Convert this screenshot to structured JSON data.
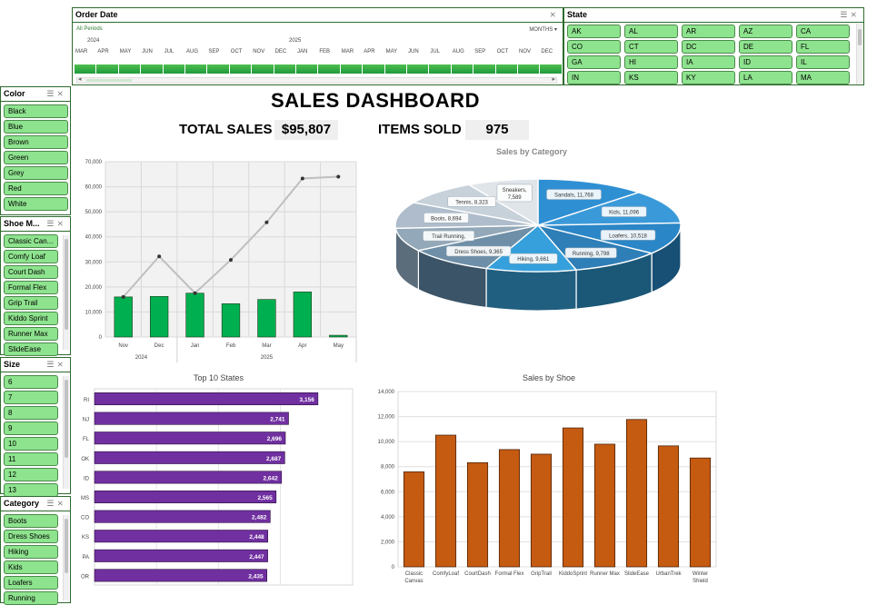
{
  "timeline": {
    "title": "Order Date",
    "period_label": "All Periods",
    "unit_label": "MONTHS",
    "years": [
      "2024",
      "2025"
    ],
    "months": [
      "MAR",
      "APR",
      "MAY",
      "JUN",
      "JUL",
      "AUG",
      "SEP",
      "OCT",
      "NOV",
      "DEC",
      "JAN",
      "FEB",
      "MAR",
      "APR",
      "MAY",
      "JUN",
      "JUL",
      "AUG",
      "SEP",
      "OCT",
      "NOV",
      "DEC"
    ]
  },
  "state_slicer": {
    "title": "State",
    "items": [
      "AK",
      "AL",
      "AR",
      "AZ",
      "CA",
      "CO",
      "CT",
      "DC",
      "DE",
      "FL",
      "GA",
      "HI",
      "IA",
      "ID",
      "IL",
      "IN",
      "KS",
      "KY",
      "LA",
      "MA"
    ]
  },
  "color_slicer": {
    "title": "Color",
    "items": [
      "Black",
      "Blue",
      "Brown",
      "Green",
      "Grey",
      "Red",
      "White"
    ]
  },
  "model_slicer": {
    "title": "Shoe M...",
    "items": [
      "Classic Can...",
      "Comfy Loaf",
      "Court Dash",
      "Formal Flex",
      "Grip Trail",
      "Kiddo Sprint",
      "Runner Max",
      "SlideEase"
    ]
  },
  "size_slicer": {
    "title": "Size",
    "items": [
      "6",
      "7",
      "8",
      "9",
      "10",
      "11",
      "12",
      "13"
    ]
  },
  "category_slicer": {
    "title": "Category",
    "items": [
      "Boots",
      "Dress Shoes",
      "Hiking",
      "Kids",
      "Loafers",
      "Running"
    ]
  },
  "header": {
    "title": "SALES DASHBOARD",
    "total_sales_label": "TOTAL SALES",
    "total_sales_value": "$95,807",
    "items_sold_label": "ITEMS SOLD",
    "items_sold_value": "975"
  },
  "colors": {
    "slicer_button": "#8ee38e",
    "bar_green": "#00b050",
    "bar_purple": "#7030a0",
    "bar_orange": "#c55a11"
  },
  "chart_data": [
    {
      "type": "bar",
      "title": "",
      "categories": [
        "Nov",
        "Dec",
        "Jan",
        "Feb",
        "Mar",
        "Apr",
        "May"
      ],
      "year_groups": [
        {
          "label": "2024",
          "span": [
            "Nov",
            "Dec"
          ]
        },
        {
          "label": "2025",
          "span": [
            "Jan",
            "Feb",
            "Mar",
            "Apr",
            "May"
          ]
        }
      ],
      "series": [
        {
          "name": "",
          "kind": "bar",
          "values": [
            16000,
            16200,
            17500,
            13300,
            15000,
            18000,
            700
          ]
        },
        {
          "name": "",
          "kind": "line",
          "values": [
            16000,
            32200,
            17500,
            30800,
            45800,
            63300,
            64000
          ]
        }
      ],
      "ylim": [
        0,
        70000
      ],
      "yticks": [
        "0",
        "10,000",
        "20,000",
        "30,000",
        "40,000",
        "50,000",
        "60,000",
        "70,000"
      ],
      "grid": true
    },
    {
      "type": "pie",
      "title": "Sales by Category",
      "labels": [
        "Sandals",
        "Kids",
        "Loafers",
        "Running",
        "Hiking",
        "Dress Shoes",
        "Trail Running",
        "Boots",
        "Tennis",
        "Sneakers"
      ],
      "values": [
        11768,
        11096,
        10518,
        9798,
        9661,
        9365,
        7700,
        8694,
        8323,
        7589
      ],
      "data_labels": [
        "Sandals, 11,768",
        "Kids, 11,096",
        "Loafers, 10,518",
        "Running, 9,798",
        "Hiking, 9,661",
        "Dress Shoes, 9,365",
        "Trail Running,",
        "Boots, 8,694",
        "Tennis, 8,323",
        "Sneakers, 7,589"
      ]
    },
    {
      "type": "bar",
      "orientation": "horizontal",
      "title": "Top 10 States",
      "categories": [
        "RI",
        "NJ",
        "FL",
        "OK",
        "ID",
        "MS",
        "CO",
        "KS",
        "PA",
        "OR"
      ],
      "values": [
        3156,
        2741,
        2696,
        2687,
        2642,
        2565,
        2482,
        2448,
        2447,
        2435
      ],
      "value_labels": [
        "3,156",
        "2,741",
        "2,696",
        "2,687",
        "2,642",
        "2,565",
        "2,482",
        "2,448",
        "2,447",
        "2,435"
      ],
      "xlim": [
        0,
        3500
      ]
    },
    {
      "type": "bar",
      "title": "Sales by Shoe",
      "categories": [
        "Classic Canvas",
        "ComfyLoaf",
        "CourtDash",
        "Formal Flex",
        "GripTrail",
        "KiddoSprint",
        "Runner Max",
        "SlideEase",
        "UrbanTrek",
        "Winter Shield"
      ],
      "values": [
        7589,
        10518,
        8323,
        9365,
        9000,
        11096,
        9798,
        11768,
        9661,
        8694
      ],
      "ylim": [
        0,
        14000
      ],
      "yticks": [
        "0",
        "2,000",
        "4,000",
        "6,000",
        "8,000",
        "10,000",
        "12,000",
        "14,000"
      ],
      "grid": true
    }
  ]
}
